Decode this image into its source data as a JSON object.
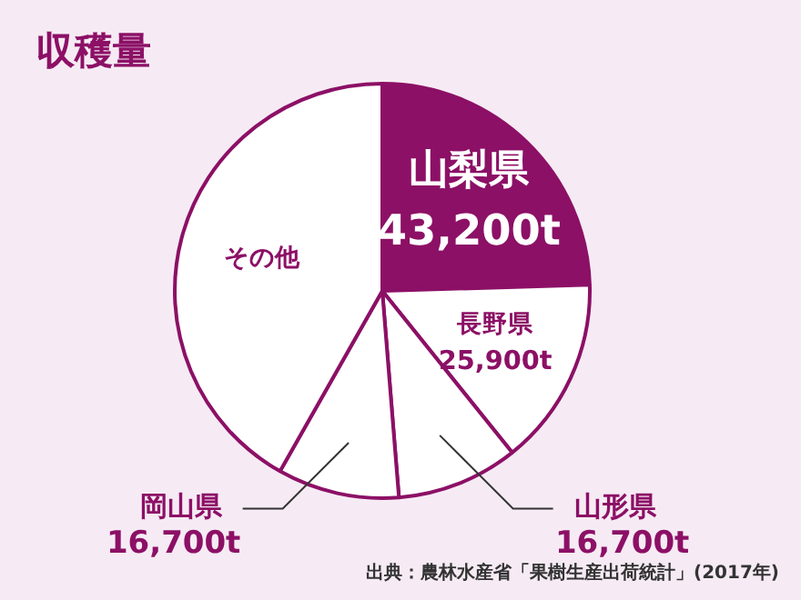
{
  "chart_data": {
    "type": "pie",
    "title": "収穫量",
    "categories": [
      "山梨県",
      "長野県",
      "山形県",
      "岡山県",
      "その他"
    ],
    "values": [
      43200,
      25900,
      16700,
      16700,
      73600
    ],
    "value_labels": [
      "43,200t",
      "25,900t",
      "16,700t",
      "16,700t",
      null
    ],
    "colors": [
      "#8c1066",
      "#ffffff",
      "#ffffff",
      "#ffffff",
      "#ffffff"
    ],
    "annotations": [
      "出典：農林水産省「果樹生産出荷統計」(2017年)"
    ],
    "legend": false
  }
}
